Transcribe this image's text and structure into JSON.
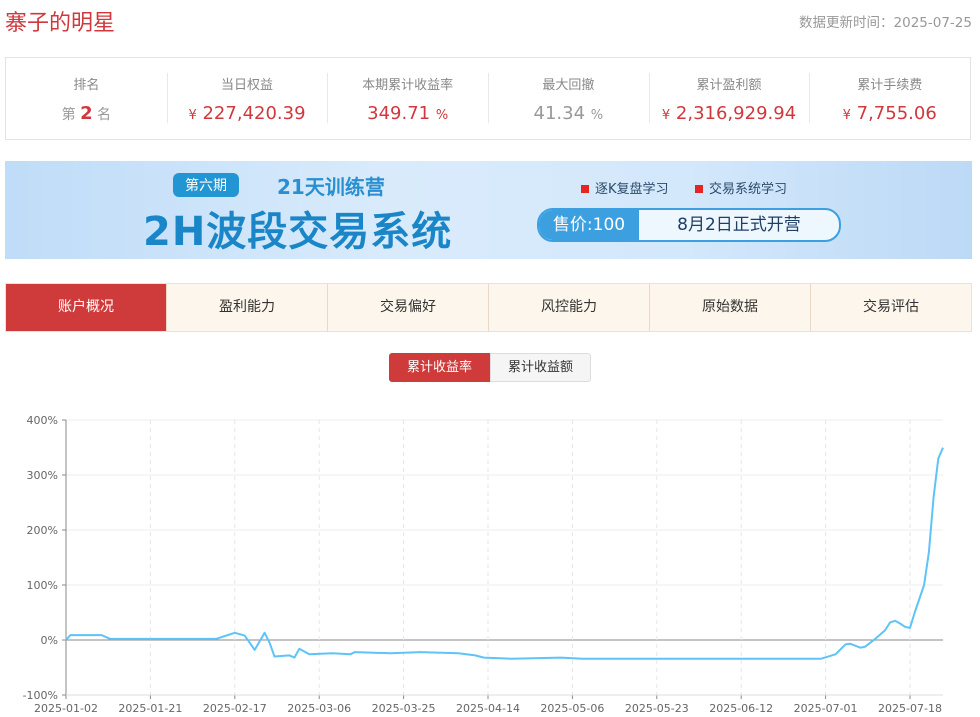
{
  "header": {
    "title": "寨子的明星",
    "updated": "数据更新时间：2025-07-25"
  },
  "stats": [
    {
      "label": "排名",
      "prefix": "第",
      "value": "2",
      "suffix": "名"
    },
    {
      "label": "当日权益",
      "prefix": "¥",
      "value": "227,420.39",
      "suffix": ""
    },
    {
      "label": "本期累计收益率",
      "prefix": "",
      "value": "349.71",
      "suffix": "%"
    },
    {
      "label": "最大回撤",
      "prefix": "",
      "value": "41.34",
      "suffix": "%"
    },
    {
      "label": "累计盈利额",
      "prefix": "¥",
      "value": "2,316,929.94",
      "suffix": ""
    },
    {
      "label": "累计手续费",
      "prefix": "¥",
      "value": "7,755.06",
      "suffix": ""
    }
  ],
  "banner": {
    "tag": "第六期",
    "subtitle": "21天训练营",
    "main": "2H波段交易系统",
    "point1": "逐K复盘学习",
    "point2": "交易系统学习",
    "price": "售价:100",
    "open": "8月2日正式开营"
  },
  "tabs": [
    "账户概况",
    "盈利能力",
    "交易偏好",
    "风控能力",
    "原始数据",
    "交易评估"
  ],
  "toggle": [
    "累计收益率",
    "累计收益额"
  ],
  "colors": {
    "accent": "#cf3b3b",
    "line": "#5ec3f7"
  },
  "chart_data": {
    "type": "line",
    "ylim": [
      -100,
      400
    ],
    "yticks": [
      "-100%",
      "0%",
      "100%",
      "200%",
      "300%",
      "400%"
    ],
    "ytick_values": [
      -100,
      0,
      100,
      200,
      300,
      400
    ],
    "xticks": [
      "2025-01-02",
      "2025-01-21",
      "2025-02-17",
      "2025-03-06",
      "2025-03-25",
      "2025-04-14",
      "2025-05-06",
      "2025-05-23",
      "2025-06-12",
      "2025-07-01",
      "2025-07-18"
    ],
    "grid": true,
    "series": [
      {
        "values": [
          [
            "2025-01-02",
            0
          ],
          [
            "2025-01-03",
            9
          ],
          [
            "2025-01-10",
            9
          ],
          [
            "2025-01-12",
            2
          ],
          [
            "2025-02-11",
            2
          ],
          [
            "2025-02-17",
            13
          ],
          [
            "2025-02-19",
            8
          ],
          [
            "2025-02-21",
            -18
          ],
          [
            "2025-02-23",
            13
          ],
          [
            "2025-02-24",
            -5
          ],
          [
            "2025-02-25",
            -30
          ],
          [
            "2025-02-28",
            -28
          ],
          [
            "2025-03-01",
            -32
          ],
          [
            "2025-03-02",
            -16
          ],
          [
            "2025-03-04",
            -26
          ],
          [
            "2025-03-09",
            -24
          ],
          [
            "2025-03-13",
            -26
          ],
          [
            "2025-03-14",
            -22
          ],
          [
            "2025-03-22",
            -24
          ],
          [
            "2025-03-29",
            -22
          ],
          [
            "2025-04-07",
            -24
          ],
          [
            "2025-04-11",
            -28
          ],
          [
            "2025-04-13",
            -32
          ],
          [
            "2025-04-20",
            -34
          ],
          [
            "2025-05-03",
            -32
          ],
          [
            "2025-05-08",
            -34
          ],
          [
            "2025-06-30",
            -34
          ],
          [
            "2025-07-03",
            -26
          ],
          [
            "2025-07-05",
            -8
          ],
          [
            "2025-07-06",
            -7
          ],
          [
            "2025-07-08",
            -14
          ],
          [
            "2025-07-09",
            -12
          ],
          [
            "2025-07-11",
            2
          ],
          [
            "2025-07-13",
            18
          ],
          [
            "2025-07-14",
            32
          ],
          [
            "2025-07-15",
            35
          ],
          [
            "2025-07-16",
            30
          ],
          [
            "2025-07-17",
            24
          ],
          [
            "2025-07-18",
            22
          ],
          [
            "2025-07-19",
            50
          ],
          [
            "2025-07-21",
            100
          ],
          [
            "2025-07-22",
            160
          ],
          [
            "2025-07-23",
            260
          ],
          [
            "2025-07-24",
            330
          ],
          [
            "2025-07-25",
            349.71
          ]
        ]
      }
    ]
  }
}
